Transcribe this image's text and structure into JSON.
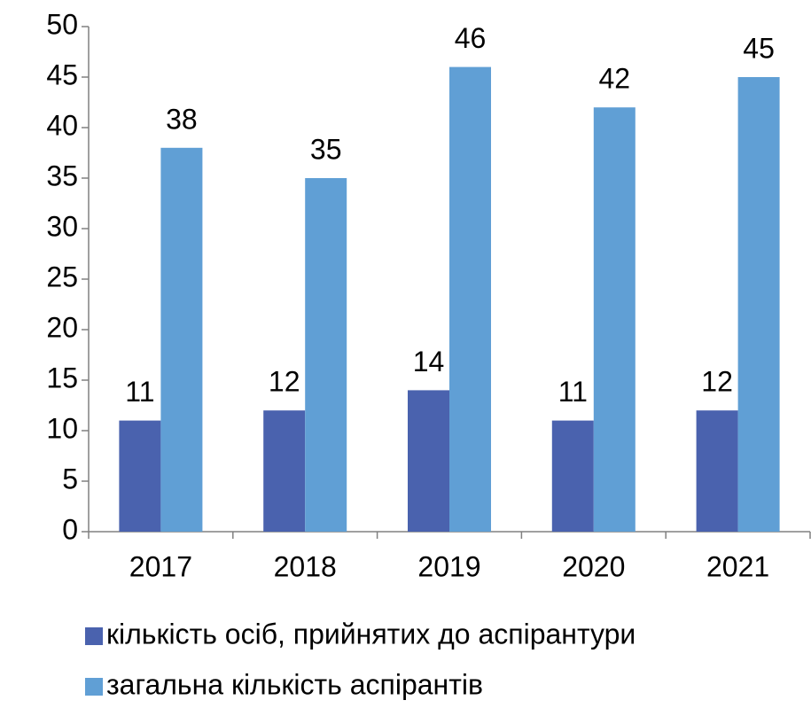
{
  "chart_data": {
    "type": "bar",
    "categories": [
      "2017",
      "2018",
      "2019",
      "2020",
      "2021"
    ],
    "series": [
      {
        "name": "кількість осіб, прийнятих до аспірантури",
        "color": "#4a62ae",
        "values": [
          11,
          12,
          14,
          11,
          12
        ]
      },
      {
        "name": "загальна кількість аспірантів",
        "color": "#609fd5",
        "values": [
          38,
          35,
          46,
          42,
          45
        ]
      }
    ],
    "ylim": [
      0,
      50
    ],
    "yticks": [
      0,
      5,
      10,
      15,
      20,
      25,
      30,
      35,
      40,
      45,
      50
    ],
    "grid": false,
    "legend": "bottom"
  }
}
